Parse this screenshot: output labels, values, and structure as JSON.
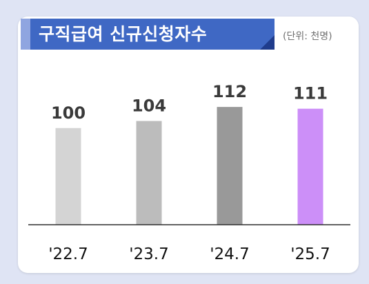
{
  "title": "구직급여 신규신청자수",
  "unit_note": "(단위: 천명)",
  "colors": {
    "background": "#dfe4f4",
    "card": "#ffffff",
    "title_banner": "#3f68c4",
    "title_banner_light": "#8fa5e0",
    "title_corner": "#1f3c8c",
    "baseline": "#2b2b2b"
  },
  "chart_data": {
    "type": "bar",
    "title": "구직급여 신규신청자수",
    "unit": "(단위: 천명)",
    "categories": [
      "'22.7",
      "'23.7",
      "'24.7",
      "'25.7"
    ],
    "values": [
      100,
      104,
      112,
      111
    ],
    "bar_colors": [
      "#d4d4d4",
      "#bcbcbc",
      "#999999",
      "#cc8ff8"
    ],
    "xlabel": "",
    "ylabel": "",
    "grid": false,
    "legend": "none"
  }
}
